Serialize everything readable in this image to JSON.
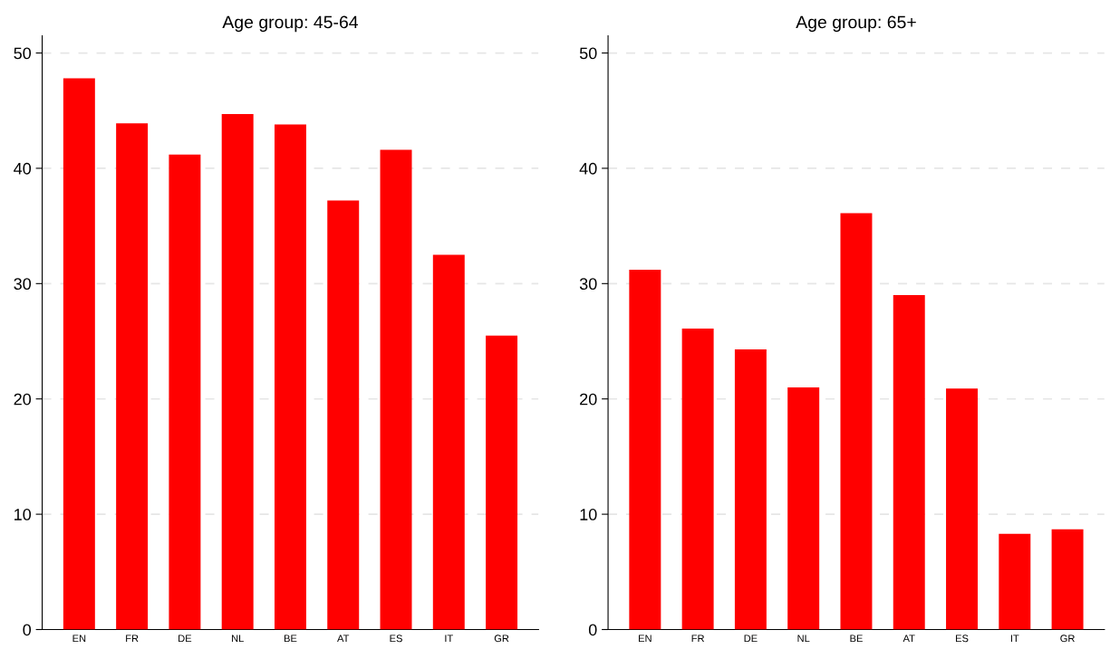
{
  "chart_data": [
    {
      "type": "bar",
      "title": "Age group: 45-64",
      "categories": [
        "EN",
        "FR",
        "DE",
        "NL",
        "BE",
        "AT",
        "ES",
        "IT",
        "GR"
      ],
      "values": [
        47.8,
        43.9,
        41.2,
        44.7,
        43.8,
        37.2,
        41.6,
        32.5,
        25.5
      ],
      "color": "#ff0000",
      "ylim": [
        0,
        51.5
      ],
      "yticks": [
        0,
        10,
        20,
        30,
        40,
        50
      ],
      "grid": "y"
    },
    {
      "type": "bar",
      "title": "Age group: 65+",
      "categories": [
        "EN",
        "FR",
        "DE",
        "NL",
        "BE",
        "AT",
        "ES",
        "IT",
        "GR"
      ],
      "values": [
        31.2,
        26.1,
        24.3,
        21.0,
        36.1,
        29.0,
        20.9,
        8.3,
        8.7
      ],
      "color": "#ff0000",
      "ylim": [
        0,
        51.5
      ],
      "yticks": [
        0,
        10,
        20,
        30,
        40,
        50
      ],
      "grid": "y"
    }
  ]
}
